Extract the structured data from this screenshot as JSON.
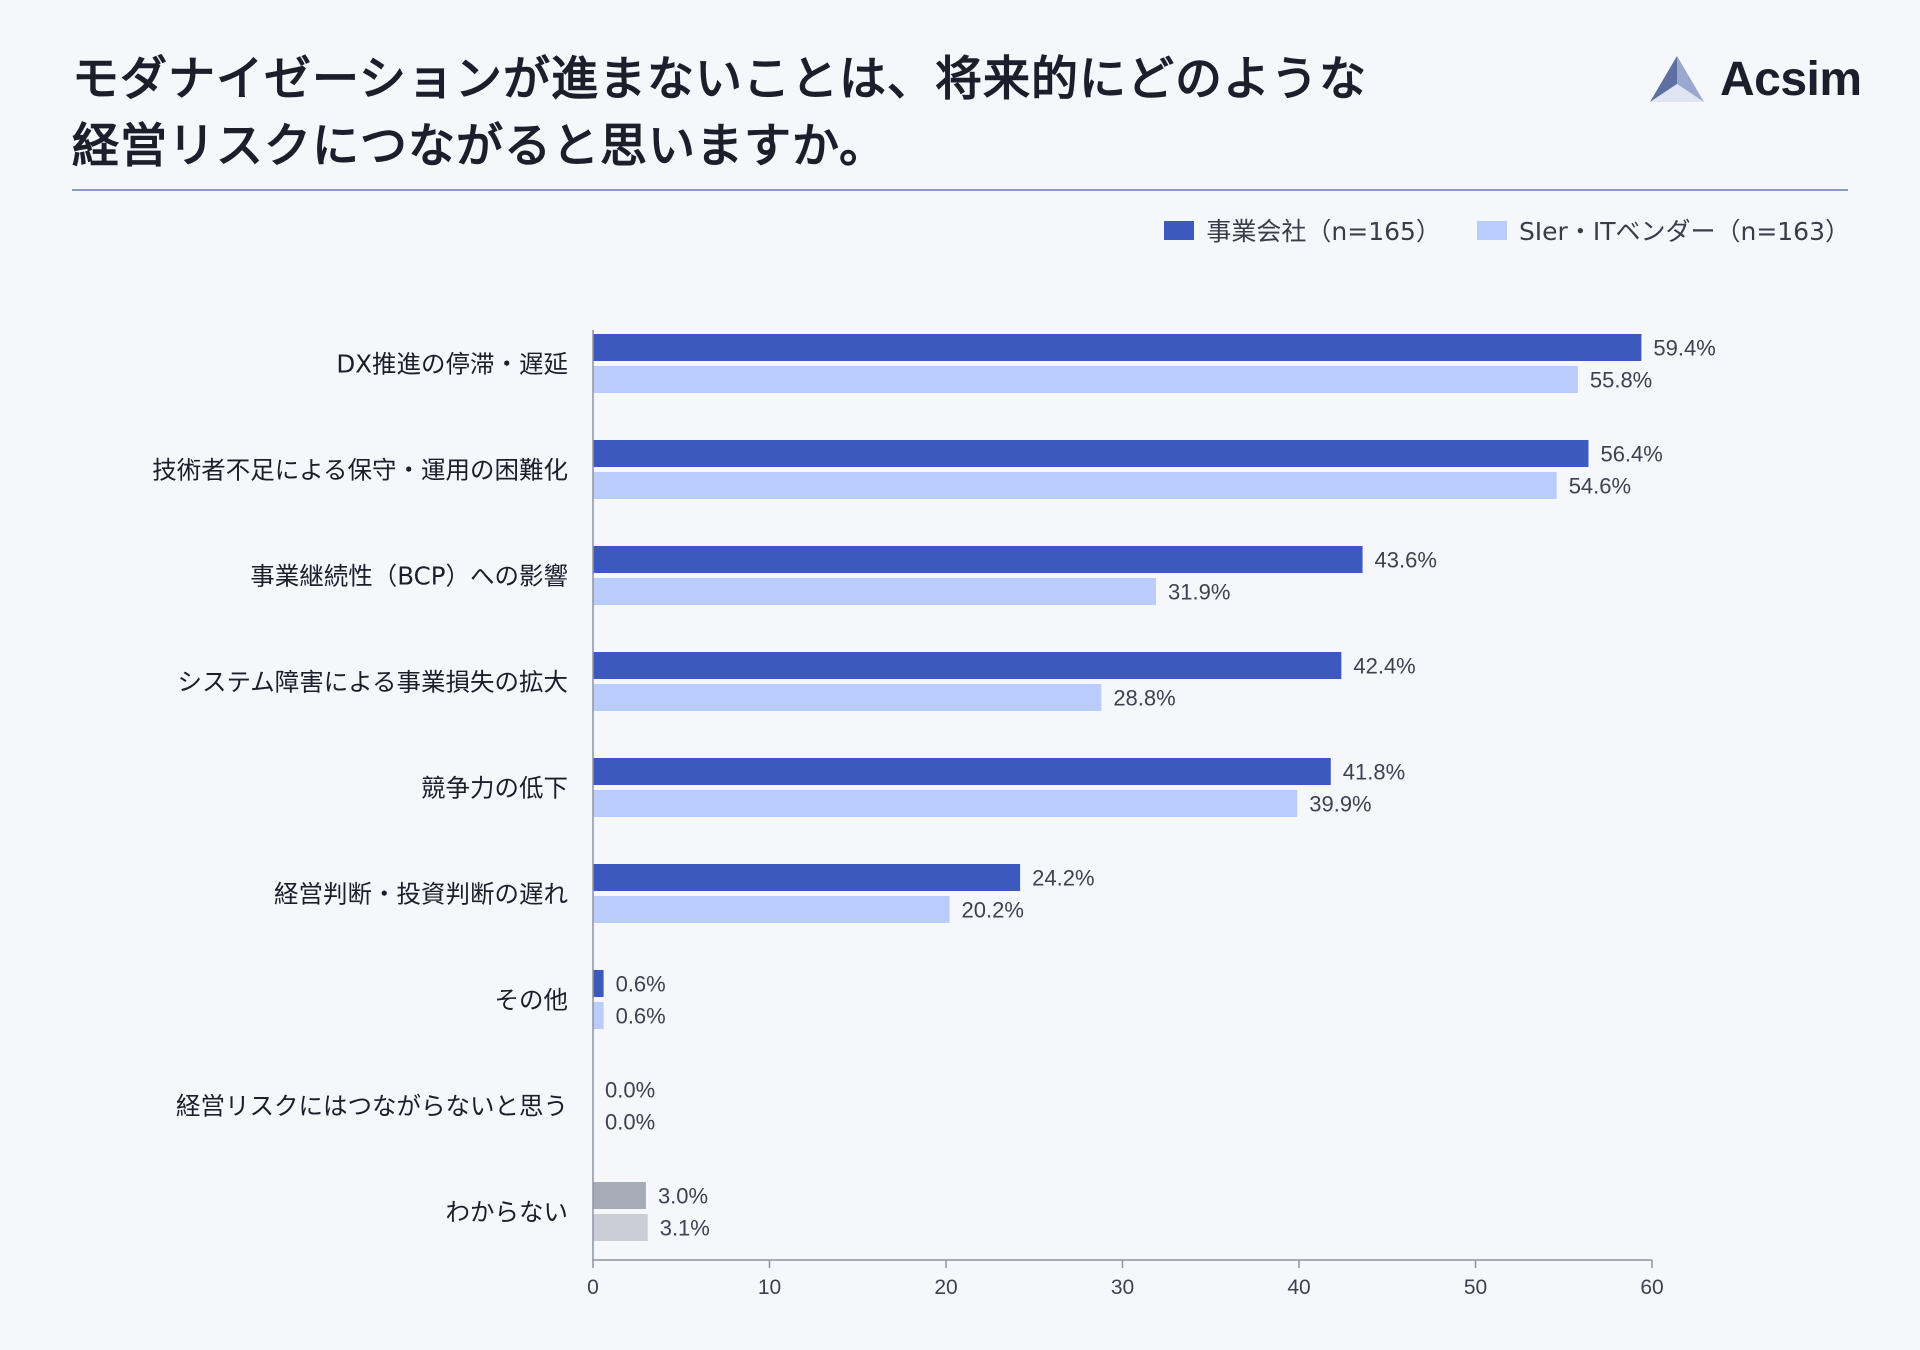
{
  "title_lines": [
    "モダナイゼーションが進まないことは、将来的にどのような",
    "経営リスクにつながると思いますか。"
  ],
  "logo": {
    "text": "Acsim"
  },
  "colors": {
    "series1": "#3d59bd",
    "series2": "#b9ccfb",
    "unknown1": "#a6abb8",
    "unknown2": "#cbced6",
    "axis": "#8e93a3",
    "header_rule": "#8a9ac8"
  },
  "chart_data": {
    "type": "bar",
    "orientation": "horizontal",
    "categories": [
      "DX推進の停滞・遅延",
      "技術者不足による保守・運用の困難化",
      "事業継続性（BCP）への影響",
      "システム障害による事業損失の拡大",
      "競争力の低下",
      "経営判断・投資判断の遅れ",
      "その他",
      "経営リスクにはつながらないと思う",
      "わからない"
    ],
    "series": [
      {
        "name": "事業会社（n=165）",
        "values": [
          59.4,
          56.4,
          43.6,
          42.4,
          41.8,
          24.2,
          0.6,
          0.0,
          3.0
        ]
      },
      {
        "name": "SIer・ITベンダー（n=163）",
        "values": [
          55.8,
          54.6,
          31.9,
          28.8,
          39.9,
          20.2,
          0.6,
          0.0,
          3.1
        ]
      }
    ],
    "value_suffix": "%",
    "xlim": [
      0,
      60
    ],
    "xticks": [
      0,
      10,
      20,
      30,
      40,
      50,
      60
    ],
    "grid": false,
    "legend_position": "top-right"
  }
}
